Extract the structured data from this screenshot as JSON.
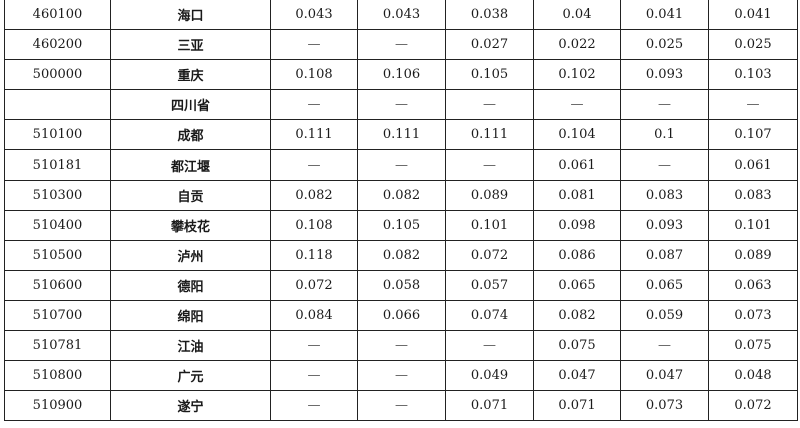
{
  "table": {
    "rows": [
      {
        "code": "460100",
        "name": "海口",
        "values": [
          "0.043",
          "0.043",
          "0.038",
          "0.04",
          "0.041",
          "0.041"
        ]
      },
      {
        "code": "460200",
        "name": "三亚",
        "values": [
          "—",
          "—",
          "0.027",
          "0.022",
          "0.025",
          "0.025"
        ]
      },
      {
        "code": "500000",
        "name": "重庆",
        "values": [
          "0.108",
          "0.106",
          "0.105",
          "0.102",
          "0.093",
          "0.103"
        ]
      },
      {
        "code": "",
        "name": "四川省",
        "values": [
          "—",
          "—",
          "—",
          "—",
          "—",
          "—"
        ]
      },
      {
        "code": "510100",
        "name": "成都",
        "values": [
          "0.111",
          "0.111",
          "0.111",
          "0.104",
          "0.1",
          "0.107"
        ]
      },
      {
        "code": "510181",
        "name": "都江堰",
        "values": [
          "—",
          "—",
          "—",
          "0.061",
          "—",
          "0.061"
        ]
      },
      {
        "code": "510300",
        "name": "自贡",
        "values": [
          "0.082",
          "0.082",
          "0.089",
          "0.081",
          "0.083",
          "0.083"
        ]
      },
      {
        "code": "510400",
        "name": "攀枝花",
        "values": [
          "0.108",
          "0.105",
          "0.101",
          "0.098",
          "0.093",
          "0.101"
        ]
      },
      {
        "code": "510500",
        "name": "泸州",
        "values": [
          "0.118",
          "0.082",
          "0.072",
          "0.086",
          "0.087",
          "0.089"
        ]
      },
      {
        "code": "510600",
        "name": "德阳",
        "values": [
          "0.072",
          "0.058",
          "0.057",
          "0.065",
          "0.065",
          "0.063"
        ]
      },
      {
        "code": "510700",
        "name": "绵阳",
        "values": [
          "0.084",
          "0.066",
          "0.074",
          "0.082",
          "0.059",
          "0.073"
        ]
      },
      {
        "code": "510781",
        "name": "江油",
        "values": [
          "—",
          "—",
          "—",
          "0.075",
          "—",
          "0.075"
        ]
      },
      {
        "code": "510800",
        "name": "广元",
        "values": [
          "—",
          "—",
          "0.049",
          "0.047",
          "0.047",
          "0.048"
        ]
      },
      {
        "code": "510900",
        "name": "遂宁",
        "values": [
          "—",
          "—",
          "0.071",
          "0.071",
          "0.073",
          "0.072"
        ]
      }
    ]
  }
}
